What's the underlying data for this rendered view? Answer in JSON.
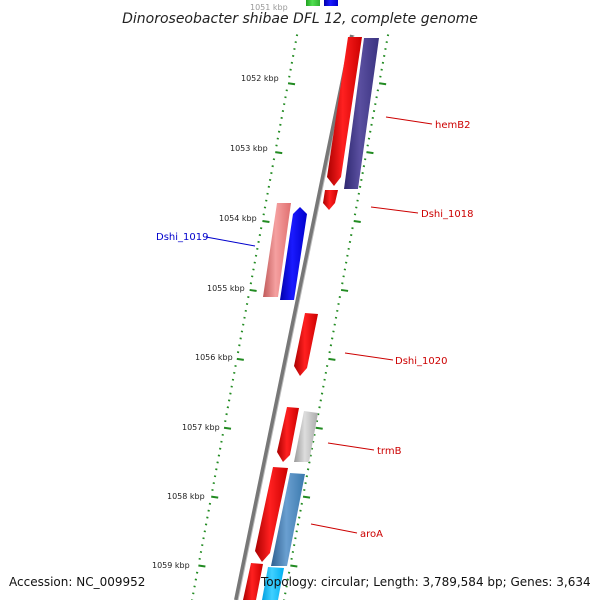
{
  "title": "Dinoroseobacter shibae DFL 12, complete genome",
  "accession": "Accession: NC_009952",
  "topology": "Topology: circular; Length: 3,789,584 bp; Genes: 3,634",
  "ruler_labels": [
    {
      "id": "kbp-1051",
      "text": "1051 kbp"
    },
    {
      "id": "kbp-1052",
      "text": "1052 kbp"
    },
    {
      "id": "kbp-1053",
      "text": "1053 kbp"
    },
    {
      "id": "kbp-1054",
      "text": "1054 kbp"
    },
    {
      "id": "kbp-1055",
      "text": "1055 kbp"
    },
    {
      "id": "kbp-1056",
      "text": "1056 kbp"
    },
    {
      "id": "kbp-1057",
      "text": "1057 kbp"
    },
    {
      "id": "kbp-1058",
      "text": "1058 kbp"
    },
    {
      "id": "kbp-1059",
      "text": "1059 kbp"
    }
  ],
  "gene_labels": [
    {
      "id": "hemB2",
      "text": "hemB2",
      "color": "#cc0000"
    },
    {
      "id": "Dshi_1018",
      "text": "Dshi_1018",
      "color": "#cc0000"
    },
    {
      "id": "Dshi_1019",
      "text": "Dshi_1019",
      "color": "#0000cc"
    },
    {
      "id": "Dshi_1020",
      "text": "Dshi_1020",
      "color": "#cc0000"
    },
    {
      "id": "trmB",
      "text": "trmB",
      "color": "#cc0000"
    },
    {
      "id": "aroA",
      "text": "aroA",
      "color": "#cc0000"
    }
  ],
  "colors": {
    "ruler_tick": "#228b22",
    "backbone": "#808080",
    "gene_red": "#ff0000",
    "gene_blue": "#0000ff",
    "gene_purple": "#483d8b",
    "gene_pink": "#f08080",
    "gene_grey": "#bbbbbb",
    "gene_steelblue": "#4682b4",
    "gene_cyan": "#00bfff",
    "gene_green": "#32cd32"
  }
}
